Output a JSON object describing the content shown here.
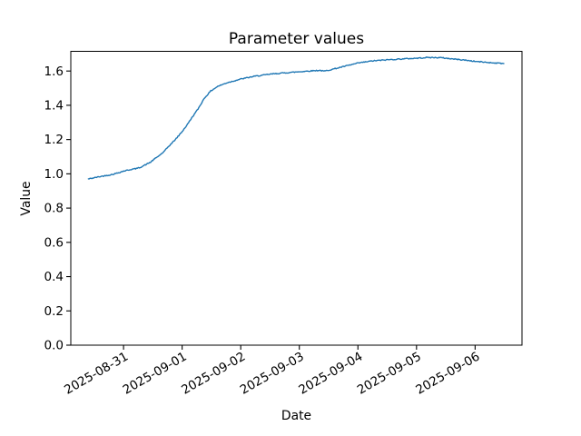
{
  "chart_data": {
    "type": "line",
    "title": "Parameter values",
    "xlabel": "Date",
    "ylabel": "Value",
    "grid": false,
    "legend_position": "none",
    "x_unit": "days since 2025-08-31 00:00",
    "xlim": [
      -0.9,
      6.8
    ],
    "ylim": [
      0.0,
      1.715
    ],
    "yticks": [
      0.0,
      0.2,
      0.4,
      0.6,
      0.8,
      1.0,
      1.2,
      1.4,
      1.6
    ],
    "ytick_labels": [
      "0.0",
      "0.2",
      "0.4",
      "0.6",
      "0.8",
      "1.0",
      "1.2",
      "1.4",
      "1.6"
    ],
    "xticks": [
      0,
      1,
      2,
      3,
      4,
      5,
      6
    ],
    "xtick_labels": [
      "2025-08-31",
      "2025-09-01",
      "2025-09-02",
      "2025-09-03",
      "2025-09-04",
      "2025-09-05",
      "2025-09-06"
    ],
    "xtick_rotation_deg": 30,
    "series": [
      {
        "name": "Parameter values",
        "color": "#1f77b4",
        "linewidth": 1.4,
        "noise_amplitude": 0.003,
        "points": [
          [
            -0.6,
            0.97
          ],
          [
            -0.5,
            0.977
          ],
          [
            -0.4,
            0.984
          ],
          [
            -0.3,
            0.99
          ],
          [
            -0.21,
            0.995
          ],
          [
            -0.1,
            1.005
          ],
          [
            0.0,
            1.016
          ],
          [
            0.12,
            1.025
          ],
          [
            0.22,
            1.031
          ],
          [
            0.3,
            1.04
          ],
          [
            0.38,
            1.054
          ],
          [
            0.46,
            1.068
          ],
          [
            0.53,
            1.087
          ],
          [
            0.61,
            1.107
          ],
          [
            0.69,
            1.129
          ],
          [
            0.76,
            1.157
          ],
          [
            0.87,
            1.195
          ],
          [
            0.93,
            1.218
          ],
          [
            1.0,
            1.247
          ],
          [
            1.08,
            1.283
          ],
          [
            1.15,
            1.32
          ],
          [
            1.27,
            1.378
          ],
          [
            1.38,
            1.442
          ],
          [
            1.49,
            1.484
          ],
          [
            1.61,
            1.511
          ],
          [
            1.77,
            1.532
          ],
          [
            2.0,
            1.553
          ],
          [
            2.23,
            1.569
          ],
          [
            2.54,
            1.583
          ],
          [
            2.78,
            1.59
          ],
          [
            3.01,
            1.596
          ],
          [
            3.19,
            1.601
          ],
          [
            3.35,
            1.604
          ],
          [
            3.42,
            1.599
          ],
          [
            3.55,
            1.609
          ],
          [
            3.78,
            1.628
          ],
          [
            4.01,
            1.647
          ],
          [
            4.25,
            1.659
          ],
          [
            4.48,
            1.665
          ],
          [
            4.71,
            1.67
          ],
          [
            5.02,
            1.675
          ],
          [
            5.18,
            1.679
          ],
          [
            5.41,
            1.678
          ],
          [
            5.64,
            1.67
          ],
          [
            5.87,
            1.662
          ],
          [
            6.01,
            1.656
          ],
          [
            6.26,
            1.649
          ],
          [
            6.49,
            1.644
          ]
        ]
      }
    ]
  }
}
